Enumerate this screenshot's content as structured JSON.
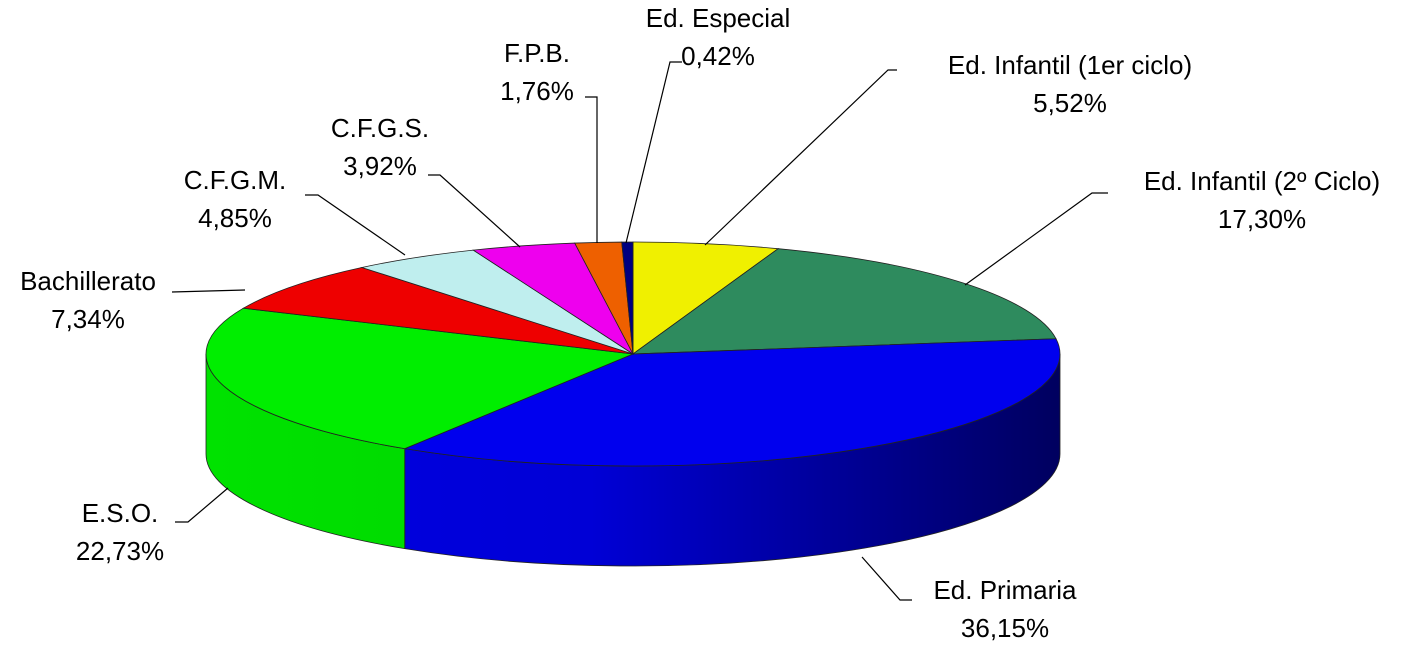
{
  "chart_data": {
    "type": "pie3d",
    "categories": [
      "Ed. Infantil (1er ciclo)",
      "Ed. Infantil (2º Ciclo)",
      "Ed. Primaria",
      "E.S.O.",
      "Bachillerato",
      "C.F.G.M.",
      "C.F.G.S.",
      "F.P.B.",
      "Ed. Especial"
    ],
    "values": [
      5.52,
      17.3,
      36.15,
      22.73,
      7.34,
      4.85,
      3.92,
      1.76,
      0.42
    ],
    "value_labels": [
      "5,52%",
      "17,30%",
      "36,15%",
      "22,73%",
      "7,34%",
      "4,85%",
      "3,92%",
      "1,76%",
      "0,42%"
    ],
    "colors": [
      "#f0f000",
      "#2e8b5e",
      "#0000ee",
      "#00ee00",
      "#ee0000",
      "#bfeeee",
      "#ee00ee",
      "#ee6000",
      "#000080"
    ]
  }
}
